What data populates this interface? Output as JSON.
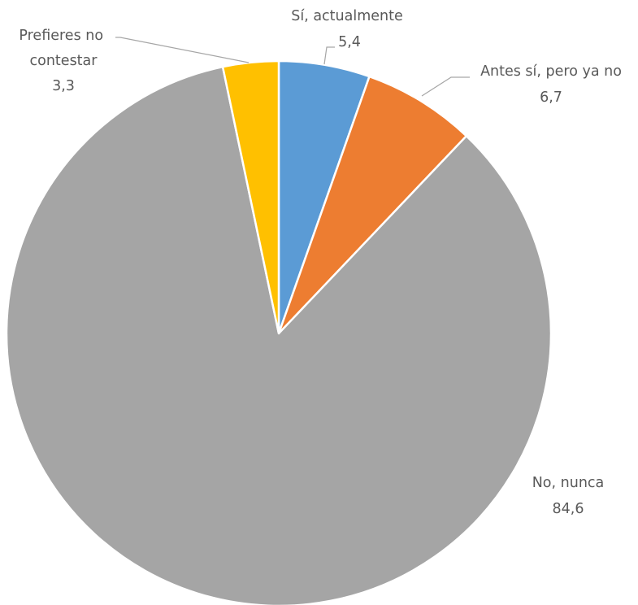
{
  "chart_data": {
    "type": "pie",
    "start_angle_deg": 0,
    "direction": "clockwise",
    "slices": [
      {
        "label": "Sí, actualmente",
        "value": 5.4,
        "value_text": "5,4",
        "color": "#5b9bd5"
      },
      {
        "label": "Antes sí, pero ya no",
        "value": 6.7,
        "value_text": "6,7",
        "color": "#ed7d31"
      },
      {
        "label": "No, nunca",
        "value": 84.6,
        "value_text": "84,6",
        "color": "#a5a5a5"
      },
      {
        "label": "Prefieres no contestar",
        "value": 3.3,
        "value_text": "3,3",
        "color": "#ffc000"
      }
    ],
    "data_labels": "category-and-value",
    "legend": "none"
  }
}
